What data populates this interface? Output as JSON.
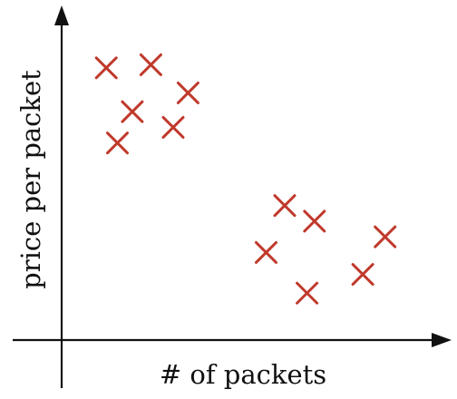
{
  "chart_data": {
    "type": "scatter",
    "title": "",
    "xlabel": "# of packets",
    "ylabel": "price per packet",
    "xlim": [
      0,
      10
    ],
    "ylim": [
      0,
      10
    ],
    "grid": false,
    "ticks": false,
    "marker": "x",
    "marker_color": "#c0392b",
    "series": [
      {
        "points": [
          [
            1.2,
            8.7
          ],
          [
            2.4,
            8.8
          ],
          [
            3.4,
            7.9
          ],
          [
            1.9,
            7.3
          ],
          [
            3.0,
            6.8
          ],
          [
            1.5,
            6.3
          ],
          [
            6.0,
            4.3
          ],
          [
            6.8,
            3.8
          ],
          [
            5.5,
            2.8
          ],
          [
            8.1,
            2.1
          ],
          [
            8.7,
            3.3
          ],
          [
            6.6,
            1.5
          ]
        ]
      }
    ]
  }
}
